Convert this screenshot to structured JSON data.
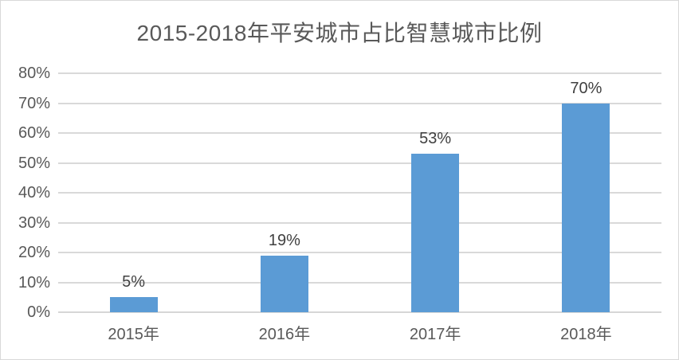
{
  "chart_data": {
    "type": "bar",
    "title": "2015-2018年平安城市占比智慧城市比例",
    "categories": [
      "2015年",
      "2016年",
      "2017年",
      "2018年"
    ],
    "values": [
      5,
      19,
      53,
      70
    ],
    "data_labels": [
      "5%",
      "19%",
      "53%",
      "70%"
    ],
    "xlabel": "",
    "ylabel": "",
    "ylim": [
      0,
      80
    ],
    "ytick_step": 10,
    "ytick_labels": [
      "0%",
      "10%",
      "20%",
      "30%",
      "40%",
      "50%",
      "60%",
      "70%",
      "80%"
    ],
    "grid": true,
    "legend": false,
    "colors": {
      "bar": "#5b9bd5",
      "gridline": "#d9d9d9",
      "axis_line": "#d6d6d6",
      "title_text": "#595959",
      "tick_text": "#595959",
      "data_label_text": "#404040",
      "background": "#ffffff",
      "outer_border": "#d9d9d9"
    }
  }
}
